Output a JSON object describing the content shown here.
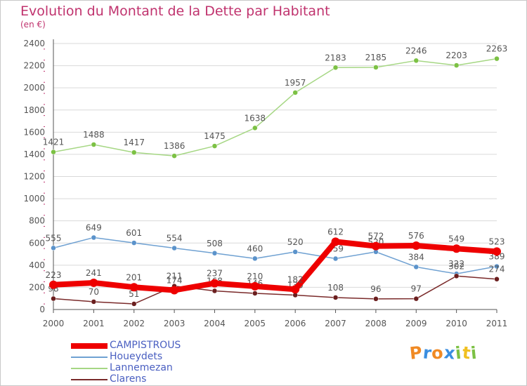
{
  "page": {
    "title": "Evolution du Montant de la Dette par Habitant",
    "subtitle": "(en €)"
  },
  "colors": {
    "title": "#c0336e",
    "grid": "#d9d9d9",
    "axis": "#555555",
    "label": "#555555",
    "legend_text": "#4a5fc1"
  },
  "chart_data": {
    "type": "line",
    "title": "Evolution du Montant de la Dette par Habitant",
    "ylabel": "(en €)",
    "xlabel": "",
    "ylim": [
      0,
      2400
    ],
    "yticks": [
      0,
      200,
      400,
      600,
      800,
      1000,
      1200,
      1400,
      1600,
      1800,
      2000,
      2200,
      2400
    ],
    "grid": true,
    "legend_position": "bottom-left",
    "x": [
      "2000",
      "2001",
      "2002",
      "2003",
      "2004",
      "2005",
      "2006",
      "2007",
      "2008",
      "2009",
      "2010",
      "2011"
    ],
    "series": [
      {
        "key": "lannemezan",
        "name": "Lannemezan",
        "color": "#a6d784",
        "marker_color": "#7cc144",
        "values": [
          1421,
          1488,
          1417,
          1386,
          1475,
          1638,
          1957,
          2183,
          2185,
          2246,
          2203,
          2263
        ]
      },
      {
        "key": "houeydets",
        "name": "Houeydets",
        "color": "#6fa1d2",
        "marker_color": "#5b93cb",
        "values": [
          555,
          649,
          601,
          554,
          508,
          460,
          520,
          459,
          520,
          384,
          322,
          389
        ]
      },
      {
        "key": "clarens",
        "name": "Clarens",
        "color": "#7a2a2a",
        "marker_color": "#6b1f1f",
        "values": [
          98,
          70,
          51,
          211,
          168,
          146,
          130,
          108,
          96,
          97,
          302,
          274
        ]
      },
      {
        "key": "campistrous",
        "name": "CAMPISTROUS",
        "color": "#ee0000",
        "marker_color": "#ee0000",
        "values": [
          223,
          241,
          201,
          174,
          237,
          210,
          182,
          612,
          572,
          576,
          549,
          523
        ]
      }
    ],
    "legend_order": [
      "campistrous",
      "houeydets",
      "lannemezan",
      "clarens"
    ]
  },
  "logo": {
    "letters": [
      {
        "ch": "P",
        "color": "#f08a24"
      },
      {
        "ch": "r",
        "color": "#3a8ee0"
      },
      {
        "ch": "o",
        "color": "#f08a24"
      },
      {
        "ch": "x",
        "color": "#3a8ee0"
      },
      {
        "ch": "i",
        "color": "#7cc144"
      },
      {
        "ch": "t",
        "color": "#f0c020"
      },
      {
        "ch": "i",
        "color": "#7cc144"
      }
    ]
  }
}
